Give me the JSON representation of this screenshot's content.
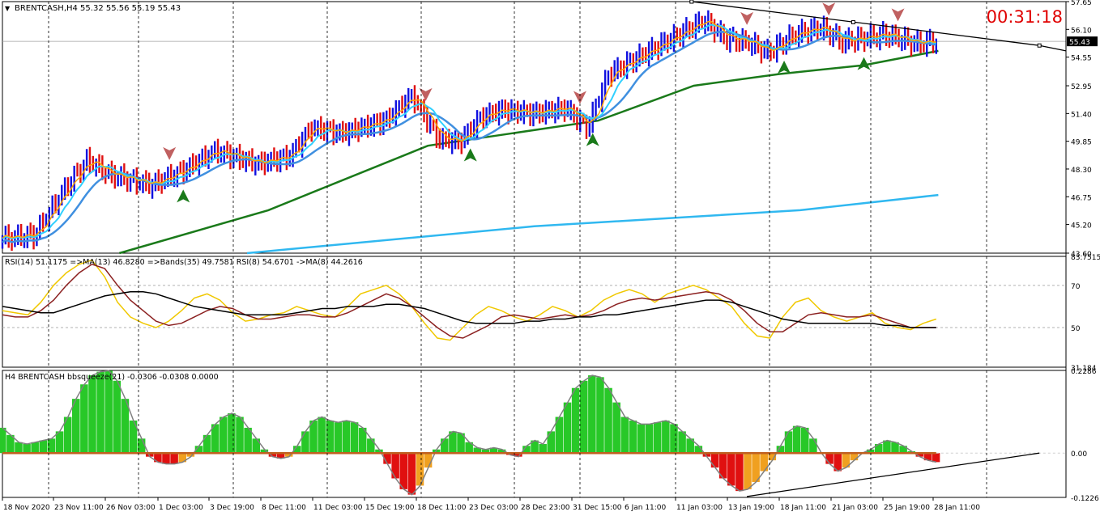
{
  "header": {
    "symbol_text": "BRENTCASH,H4  55.32 55.56 55.19 55.43",
    "countdown": "00:31:18",
    "current_price": "55.43"
  },
  "colors": {
    "bull_bar": "#1010e0",
    "bear_bar": "#e01010",
    "fast_ma": "#ffa500",
    "ma_cyan": "#30d0ff",
    "ma_blue": "#4090e0",
    "ma_green": "#1a7a1a",
    "ma_long": "#30b8f0",
    "rsi_yellow": "#f0c800",
    "rsi_brown": "#8b2020",
    "rsi_black": "#000000",
    "hist_green": "#28c828",
    "hist_red": "#e01010",
    "hist_orange": "#f0a020",
    "countdown": "#e00000",
    "grid": "#000000"
  },
  "chart_data": [
    {
      "type": "candlestick",
      "title": "BRENTCASH,H4",
      "y_ticks": [
        "57.65",
        "56.10",
        "54.55",
        "52.95",
        "51.40",
        "49.85",
        "48.30",
        "46.75",
        "45.20",
        "43.60"
      ],
      "ylim": [
        43.6,
        57.65
      ],
      "price_line": 55.43,
      "trendlines": [
        {
          "x": [
            0.648,
            0.975
          ],
          "y": [
            57.65,
            55.2
          ]
        },
        {
          "x": [
            0.975,
            1.0
          ],
          "y": [
            55.2,
            54.9
          ]
        }
      ],
      "ma_green_points": [
        [
          0.11,
          43.6
        ],
        [
          0.25,
          46.0
        ],
        [
          0.4,
          49.6
        ],
        [
          0.48,
          50.3
        ],
        [
          0.56,
          51.0
        ],
        [
          0.65,
          52.95
        ],
        [
          0.73,
          53.6
        ],
        [
          0.81,
          54.1
        ],
        [
          0.88,
          54.9
        ]
      ],
      "ma_long_points": [
        [
          0.23,
          43.6
        ],
        [
          0.5,
          45.1
        ],
        [
          0.75,
          46.0
        ],
        [
          0.88,
          46.85
        ]
      ],
      "signal_arrows": [
        {
          "x": 0.17,
          "dir": "up"
        },
        {
          "x": 0.157,
          "dir": "down"
        },
        {
          "x": 0.398,
          "dir": "down"
        },
        {
          "x": 0.44,
          "dir": "up"
        },
        {
          "x": 0.543,
          "dir": "down"
        },
        {
          "x": 0.555,
          "dir": "up"
        },
        {
          "x": 0.7,
          "dir": "down"
        },
        {
          "x": 0.735,
          "dir": "up"
        },
        {
          "x": 0.777,
          "dir": "down"
        },
        {
          "x": 0.81,
          "dir": "up"
        },
        {
          "x": 0.842,
          "dir": "down"
        }
      ]
    },
    {
      "type": "line",
      "title": "RSI(14) 51.1175  =>MA(13) 46.8280  =>Bands(35) 49.7581  RSI(8) 54.6701  ->MA(8) 44.2616",
      "y_ticks": [
        "83.7515",
        "70",
        "50",
        "31.184"
      ],
      "ylim": [
        31.184,
        83.7515
      ],
      "series": [
        {
          "values": [
            58,
            57,
            56,
            62,
            70,
            76,
            80,
            82,
            74,
            62,
            55,
            52,
            50,
            53,
            58,
            64,
            66,
            63,
            57,
            53,
            54,
            56,
            57,
            60,
            58,
            56,
            55,
            60,
            66,
            68,
            70,
            66,
            60,
            52,
            45,
            44,
            50,
            56,
            60,
            58,
            55,
            53,
            56,
            60,
            58,
            55,
            58,
            63,
            66,
            68,
            66,
            62,
            66,
            68,
            70,
            68,
            64,
            60,
            52,
            46,
            45,
            55,
            62,
            64,
            58,
            55,
            53,
            55,
            57,
            52,
            50,
            49,
            52,
            54
          ]
        },
        {
          "values": [
            56,
            55,
            55,
            58,
            63,
            70,
            76,
            80,
            78,
            70,
            63,
            58,
            53,
            51,
            52,
            55,
            58,
            60,
            59,
            56,
            54,
            54,
            55,
            56,
            56,
            55,
            55,
            57,
            60,
            63,
            66,
            64,
            60,
            55,
            50,
            46,
            45,
            48,
            51,
            55,
            56,
            55,
            54,
            55,
            56,
            55,
            56,
            58,
            61,
            63,
            64,
            63,
            64,
            65,
            66,
            67,
            66,
            63,
            58,
            52,
            48,
            48,
            52,
            56,
            57,
            56,
            55,
            55,
            56,
            54,
            52,
            50,
            50,
            50
          ]
        },
        {
          "values": [
            60,
            59,
            58,
            57,
            57,
            59,
            61,
            63,
            65,
            66,
            67,
            67,
            66,
            64,
            62,
            60,
            59,
            58,
            57,
            56,
            56,
            56,
            56,
            57,
            58,
            59,
            59,
            60,
            60,
            60,
            61,
            61,
            60,
            59,
            57,
            55,
            53,
            52,
            52,
            52,
            52,
            53,
            53,
            54,
            54,
            55,
            55,
            56,
            56,
            57,
            58,
            59,
            60,
            61,
            62,
            63,
            63,
            62,
            60,
            58,
            56,
            54,
            53,
            52,
            52,
            52,
            52,
            52,
            52,
            51,
            51,
            50,
            50,
            50
          ]
        }
      ]
    },
    {
      "type": "bar",
      "title": "H4 BRENTCASH bbsqueeze(21) -0.0306 -0.0308 0.0000",
      "y_ticks": [
        "0.2286",
        "0.00",
        "-0.1226"
      ],
      "ylim": [
        -0.1226,
        0.2286
      ],
      "values": [
        0.07,
        0.05,
        0.03,
        0.025,
        0.03,
        0.035,
        0.04,
        0.06,
        0.1,
        0.15,
        0.19,
        0.215,
        0.225,
        0.228,
        0.2,
        0.15,
        0.09,
        0.04,
        -0.01,
        -0.025,
        -0.03,
        -0.03,
        -0.025,
        -0.01,
        0.02,
        0.05,
        0.08,
        0.1,
        0.11,
        0.1,
        0.07,
        0.04,
        0.01,
        -0.01,
        -0.015,
        -0.01,
        0.02,
        0.06,
        0.09,
        0.1,
        0.09,
        0.085,
        0.09,
        0.085,
        0.07,
        0.04,
        0.01,
        -0.03,
        -0.07,
        -0.1,
        -0.115,
        -0.09,
        -0.04,
        0.01,
        0.04,
        0.06,
        0.055,
        0.03,
        0.015,
        0.01,
        0.015,
        0.01,
        -0.005,
        -0.01,
        0.02,
        0.035,
        0.025,
        0.06,
        0.1,
        0.14,
        0.18,
        0.2,
        0.215,
        0.21,
        0.18,
        0.14,
        0.1,
        0.09,
        0.08,
        0.08,
        0.085,
        0.09,
        0.08,
        0.06,
        0.04,
        0.02,
        -0.01,
        -0.04,
        -0.07,
        -0.09,
        -0.105,
        -0.1,
        -0.08,
        -0.05,
        -0.02,
        0.02,
        0.06,
        0.075,
        0.07,
        0.04,
        0.0,
        -0.03,
        -0.05,
        -0.04,
        -0.02,
        0.0,
        0.01,
        0.025,
        0.035,
        0.03,
        0.02,
        0.005,
        -0.01,
        -0.02,
        -0.025
      ],
      "trendline": {
        "x": [
          0.7,
          0.975
        ],
        "y": [
          -0.12,
          0.0
        ]
      }
    }
  ],
  "x_axis": {
    "labels": [
      "18 Nov 2020",
      "23 Nov 11:00",
      "26 Nov 03:00",
      "1 Dec 03:00",
      "3 Dec 19:00",
      "8 Dec 11:00",
      "11 Dec 03:00",
      "15 Dec 19:00",
      "18 Dec 11:00",
      "23 Dec 03:00",
      "28 Dec 23:00",
      "31 Dec 15:00",
      "6 Jan 11:00",
      "11 Jan 03:00",
      "13 Jan 19:00",
      "18 Jan 11:00",
      "21 Jan 03:00",
      "25 Jan 19:00",
      "28 Jan 11:00"
    ]
  }
}
